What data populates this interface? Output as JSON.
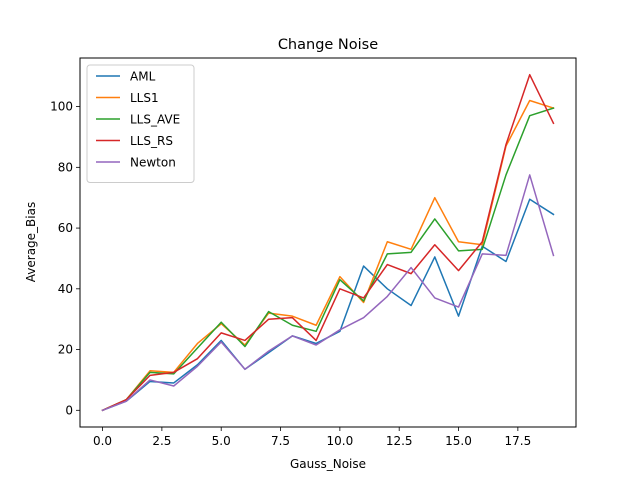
{
  "chart_data": {
    "type": "line",
    "title": "Change Noise",
    "xlabel": "Gauss_Noise",
    "ylabel": "Average_Bias",
    "xlim": [
      -0.95,
      19.95
    ],
    "ylim": [
      -5.5,
      116
    ],
    "x_ticks": [
      0,
      2.5,
      5,
      7.5,
      10,
      12.5,
      15,
      17.5
    ],
    "x_tick_labels": [
      "0.0",
      "2.5",
      "5.0",
      "7.5",
      "10.0",
      "12.5",
      "15.0",
      "17.5"
    ],
    "y_ticks": [
      0,
      20,
      40,
      60,
      80,
      100
    ],
    "y_tick_labels": [
      "0",
      "20",
      "40",
      "60",
      "80",
      "100"
    ],
    "grid": false,
    "legend_position": "upper-left",
    "x": [
      0,
      1,
      2,
      3,
      4,
      5,
      6,
      7,
      8,
      9,
      10,
      11,
      12,
      13,
      14,
      15,
      16,
      17,
      18,
      19
    ],
    "series": [
      {
        "name": "AML",
        "color": "#1f77b4",
        "values": [
          0,
          3,
          9.5,
          9,
          15,
          23,
          13.5,
          19,
          24.5,
          22,
          26,
          47.5,
          40,
          34.5,
          50.5,
          31,
          54,
          49,
          69.5,
          64.5
        ]
      },
      {
        "name": "LLS1",
        "color": "#ff7f0e",
        "values": [
          0,
          3.5,
          13,
          12.5,
          22,
          28.5,
          21.5,
          32,
          31,
          28,
          44,
          35.5,
          55.5,
          53,
          70,
          55.5,
          54.5,
          87,
          102,
          99.5
        ]
      },
      {
        "name": "LLS_AVE",
        "color": "#2ca02c",
        "values": [
          0,
          3.5,
          12.5,
          12,
          20.5,
          29,
          21,
          32.5,
          28,
          26,
          43,
          36,
          51.5,
          52,
          63,
          52.5,
          53,
          77.5,
          97,
          99.5
        ]
      },
      {
        "name": "LLS_RS",
        "color": "#d62728",
        "values": [
          0,
          3.5,
          11.5,
          12.5,
          17,
          25.5,
          23,
          30,
          30.5,
          23,
          40,
          37,
          48,
          45,
          54.5,
          46,
          55.5,
          87.5,
          110.5,
          94.5
        ]
      },
      {
        "name": "Newton",
        "color": "#9467bd",
        "values": [
          0,
          3,
          10,
          8,
          14.5,
          22.5,
          13.5,
          19.5,
          24.5,
          21.5,
          26.5,
          30.5,
          37.5,
          47,
          37,
          34,
          51.5,
          51,
          77.5,
          51
        ]
      }
    ]
  }
}
